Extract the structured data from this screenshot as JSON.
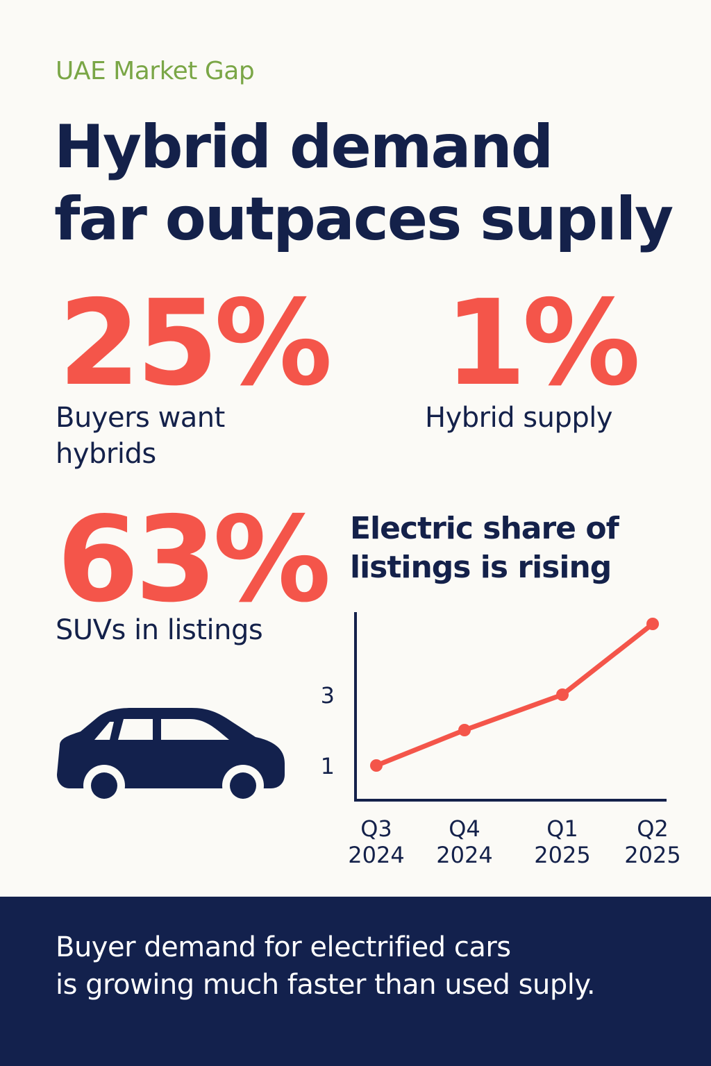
{
  "kicker": "UAE Market Gap",
  "headline": {
    "line1": "Hybrid demand",
    "line2": "far outpaces supıly"
  },
  "stats": [
    {
      "value": "25%",
      "label": "Buyers want hybrids"
    },
    {
      "value": "1%",
      "label": "Hybrid supply"
    },
    {
      "value": "63%",
      "label": "SUVs in listings"
    }
  ],
  "icon": "car-icon",
  "colors": {
    "accent": "#f4554a",
    "navy": "#14214a",
    "kicker": "#7aa646",
    "background": "#fbfaf6"
  },
  "chart_data": {
    "type": "line",
    "title": "Electric share of listings is rising",
    "categories": [
      "Q3 2024",
      "Q4 2024",
      "Q1 2025",
      "Q2 2025"
    ],
    "x_tick_lines": [
      [
        "Q3",
        "2024"
      ],
      [
        "Q4",
        "2024"
      ],
      [
        "Q1",
        "2025"
      ],
      [
        "Q2",
        "2025"
      ]
    ],
    "series": [
      {
        "values": [
          1,
          2,
          3,
          5
        ]
      }
    ],
    "y_ticks": [
      1,
      3
    ],
    "ylim": [
      0,
      5
    ],
    "grid": false,
    "xlabel": "",
    "ylabel": ""
  },
  "footer": {
    "line1": "Buyer demand for electrified cars",
    "line2": "is growing much faster than used suply."
  }
}
